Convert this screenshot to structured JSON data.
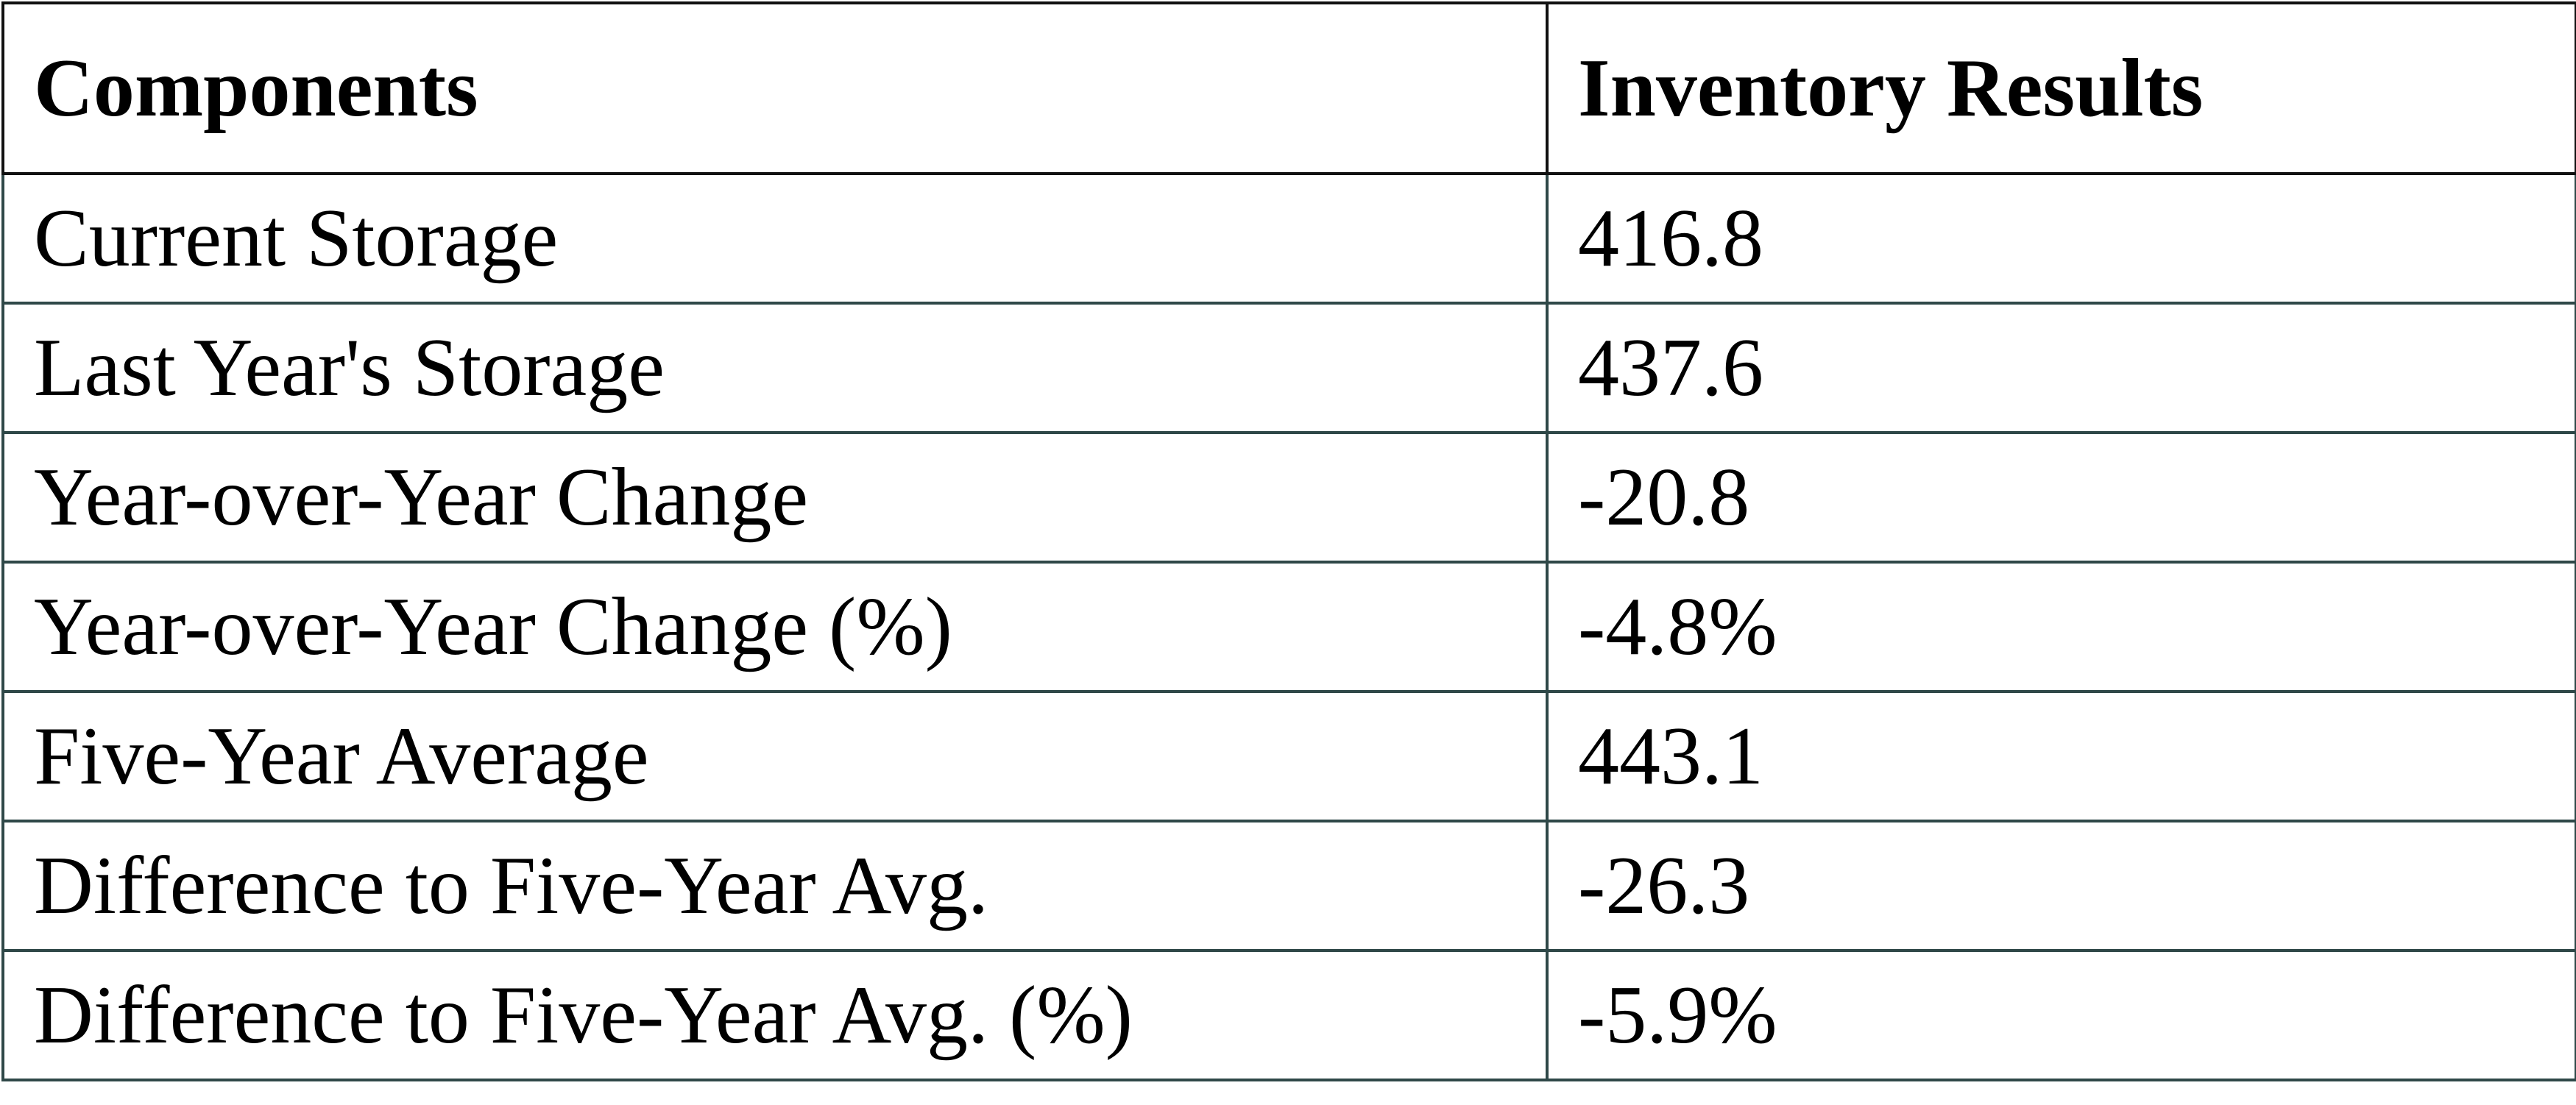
{
  "table": {
    "header": [
      "Components",
      "Inventory Results"
    ],
    "rows": [
      [
        "Current Storage",
        "416.8"
      ],
      [
        "Last Year's Storage",
        "437.6"
      ],
      [
        "Year-over-Year Change",
        "-20.8"
      ],
      [
        "Year-over-Year Change (%)",
        "-4.8%"
      ],
      [
        "Five-Year Average",
        "443.1"
      ],
      [
        "Difference to Five-Year Avg.",
        "-26.3"
      ],
      [
        "Difference to Five-Year Avg. (%)",
        "-5.9%"
      ]
    ]
  }
}
